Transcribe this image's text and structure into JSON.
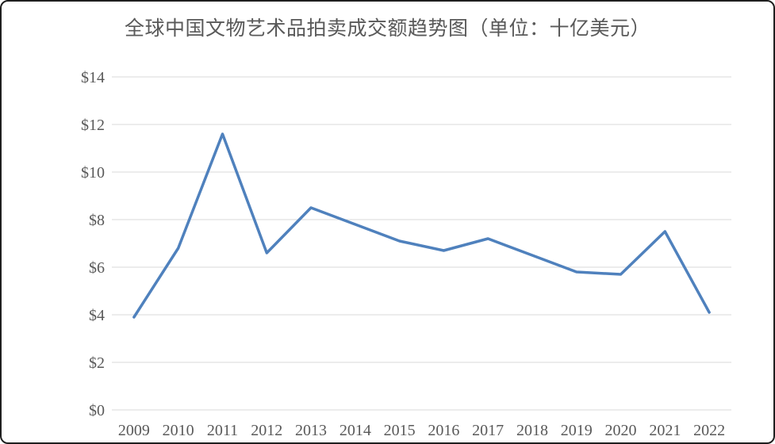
{
  "window": {
    "background_color": "#ffffff",
    "border_color": "#1f1f1f"
  },
  "chart": {
    "title": "全球中国文物艺术品拍卖成交额趋势图（单位：十亿美元）",
    "title_color": "#595959",
    "axis_label_color": "#595959",
    "gridline_color": "#d9d9d9",
    "line_color": "#4f81bd"
  },
  "chart_data": {
    "type": "line",
    "title": "全球中国文物艺术品拍卖成交额趋势图（单位：十亿美元）",
    "categories": [
      "2009",
      "2010",
      "2011",
      "2012",
      "2013",
      "2014",
      "2015",
      "2016",
      "2017",
      "2018",
      "2019",
      "2020",
      "2021",
      "2022"
    ],
    "values": [
      3.9,
      6.8,
      11.6,
      6.6,
      8.5,
      7.8,
      7.1,
      6.7,
      7.2,
      6.5,
      5.8,
      5.7,
      7.5,
      4.1
    ],
    "xlabel": "",
    "ylabel": "",
    "ylim": [
      0,
      14
    ],
    "ytick_step": 2,
    "ytick_labels": [
      "$0",
      "$2",
      "$4",
      "$6",
      "$8",
      "$10",
      "$12",
      "$14"
    ],
    "grid": "horizontal",
    "legend": "none",
    "markers": "none"
  }
}
